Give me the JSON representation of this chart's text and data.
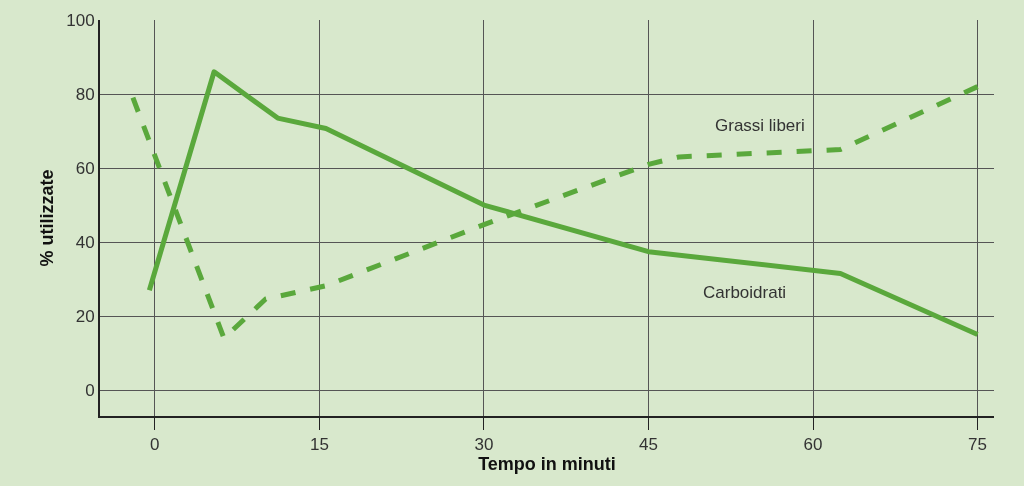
{
  "chart_data": {
    "type": "line",
    "xlabel": "Tempo in minuti",
    "ylabel": "% utilizzate",
    "xlim": [
      -5,
      76.5
    ],
    "ylim": [
      -7,
      100
    ],
    "xticks": [
      0,
      15,
      30,
      45,
      60,
      75
    ],
    "yticks": [
      0,
      20,
      40,
      60,
      80,
      100
    ],
    "grid": true,
    "legend": false,
    "marker": "none",
    "series": [
      {
        "name": "Carboidrati",
        "color": "#5aa83c",
        "line_style": "solid",
        "x": [
          -0.5,
          5.4,
          11.2,
          15.6,
          30,
          45,
          62.5,
          75
        ],
        "values": [
          27,
          86,
          73.5,
          70.7,
          50,
          37.4,
          31.5,
          15
        ]
      },
      {
        "name": "Grassi liberi",
        "color": "#5aa83c",
        "line_style": "dashed",
        "x": [
          -2,
          6.3,
          10.1,
          15.6,
          30,
          45,
          47.8,
          62.5,
          75
        ],
        "values": [
          79,
          14,
          24.6,
          28.2,
          44.7,
          61,
          63,
          65,
          82
        ]
      }
    ]
  }
}
